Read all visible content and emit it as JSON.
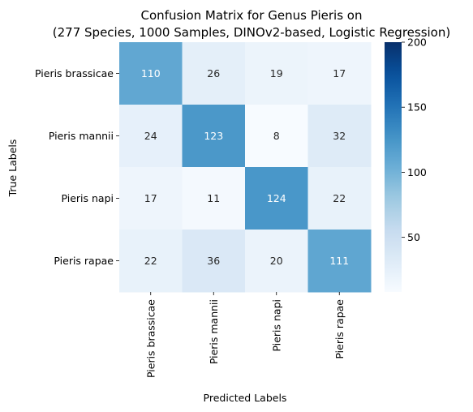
{
  "chart_data": {
    "type": "heatmap",
    "title_line1": "Confusion Matrix for Genus Pieris on",
    "title_line2": "(277 Species, 1000 Samples, DINOv2-based, Logistic Regression)",
    "xlabel": "Predicted Labels",
    "ylabel": "True Labels",
    "row_labels": [
      "Pieris brassicae",
      "Pieris mannii",
      "Pieris napi",
      "Pieris rapae"
    ],
    "col_labels": [
      "Pieris brassicae",
      "Pieris mannii",
      "Pieris napi",
      "Pieris rapae"
    ],
    "values": [
      [
        110,
        26,
        19,
        17
      ],
      [
        24,
        123,
        8,
        32
      ],
      [
        17,
        11,
        124,
        22
      ],
      [
        22,
        36,
        20,
        111
      ]
    ],
    "colormap": "Blues",
    "vmin": 8,
    "vmax": 200,
    "colorbar_ticks": [
      50,
      100,
      150,
      200
    ],
    "annotation_colors": {
      "light_text": "#ffffff",
      "dark_text": "#262626"
    }
  }
}
